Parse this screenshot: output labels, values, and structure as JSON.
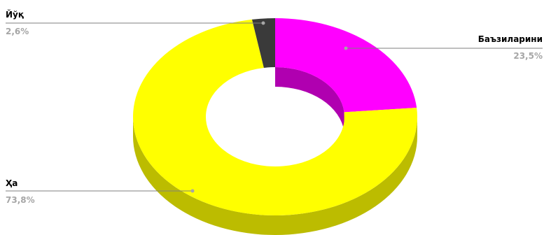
{
  "chart_data": {
    "type": "pie",
    "variant": "3d-donut",
    "slices": [
      {
        "label": "Баъзиларини",
        "value": 23.5,
        "value_label": "23,5%",
        "color": "#ff00ff",
        "side_color": "#b000b0"
      },
      {
        "label": "Ҳа",
        "value": 73.8,
        "value_label": "73,8%",
        "color": "#ffff00",
        "side_color": "#bcbc00"
      },
      {
        "label": "Йўқ",
        "value": 2.6,
        "value_label": "2,6%",
        "color": "#3a3a3a",
        "side_color": "#1f1f1f"
      }
    ],
    "leader_line_color": "#7f7f7f",
    "marker_color": "#a6a6a6"
  }
}
